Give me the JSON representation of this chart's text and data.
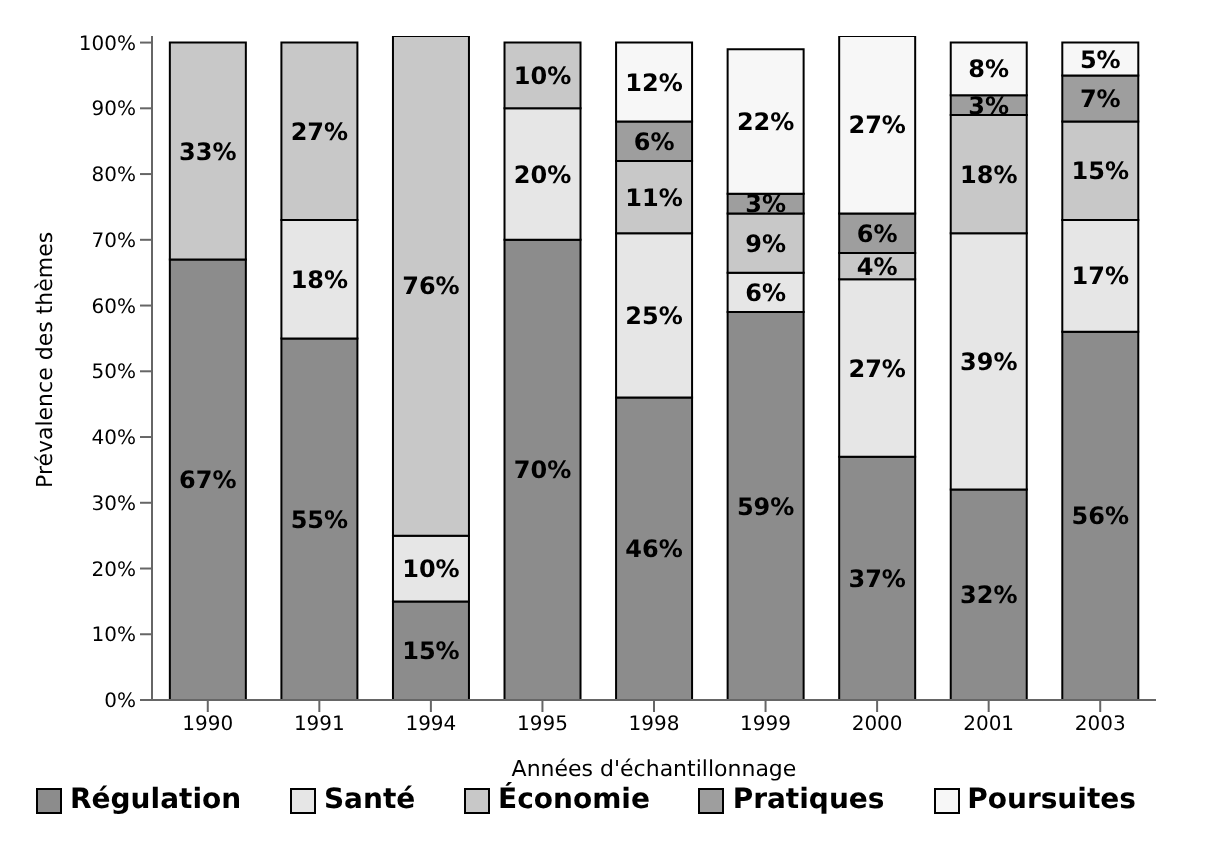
{
  "chart_data": {
    "type": "bar",
    "stacked": true,
    "xlabel": "Années d'échantillonnage",
    "ylabel": "Prévalence des thèmes",
    "categories": [
      "1990",
      "1991",
      "1994",
      "1995",
      "1998",
      "1999",
      "2000",
      "2001",
      "2003"
    ],
    "ylim": [
      0,
      101
    ],
    "yticks": [
      {
        "value": 0,
        "label": "0%"
      },
      {
        "value": 10,
        "label": "10%"
      },
      {
        "value": 20,
        "label": "20%"
      },
      {
        "value": 30,
        "label": "30%"
      },
      {
        "value": 40,
        "label": "40%"
      },
      {
        "value": 50,
        "label": "50%"
      },
      {
        "value": 60,
        "label": "60%"
      },
      {
        "value": 70,
        "label": "70%"
      },
      {
        "value": 80,
        "label": "80%"
      },
      {
        "value": 90,
        "label": "90%"
      },
      {
        "value": 100,
        "label": "100%"
      }
    ],
    "grid": false,
    "legend": "bottom",
    "series": [
      {
        "name": "Régulation",
        "color": "#8c8c8c",
        "values": [
          67,
          55,
          15,
          70,
          46,
          59,
          37,
          32,
          56
        ],
        "value_labels": [
          "67%",
          "55%",
          "15%",
          "70%",
          "46%",
          "59%",
          "37%",
          "32%",
          "56%"
        ]
      },
      {
        "name": "Santé",
        "color": "#e6e6e6",
        "values": [
          null,
          18,
          10,
          20,
          25,
          6,
          27,
          39,
          17
        ],
        "value_labels": [
          null,
          "18%",
          "10%",
          "20%",
          "25%",
          "6%",
          "27%",
          "39%",
          "17%"
        ]
      },
      {
        "name": "Économie",
        "color": "#c8c8c8",
        "values": [
          33,
          27,
          76,
          10,
          11,
          9,
          4,
          18,
          15
        ],
        "value_labels": [
          "33%",
          "27%",
          "76%",
          "10%",
          "11%",
          "9%",
          "4%",
          "18%",
          "15%"
        ]
      },
      {
        "name": "Pratiques",
        "color": "#9e9e9e",
        "values": [
          null,
          null,
          null,
          null,
          6,
          3,
          6,
          3,
          7
        ],
        "value_labels": [
          null,
          null,
          null,
          null,
          "6%",
          "3%",
          "6%",
          "3%",
          "7%"
        ]
      },
      {
        "name": "Poursuites",
        "color": "#f7f7f7",
        "values": [
          null,
          null,
          null,
          null,
          12,
          22,
          27,
          8,
          5
        ],
        "value_labels": [
          null,
          null,
          null,
          null,
          "12%",
          "22%",
          "27%",
          "8%",
          "5%"
        ]
      }
    ]
  }
}
